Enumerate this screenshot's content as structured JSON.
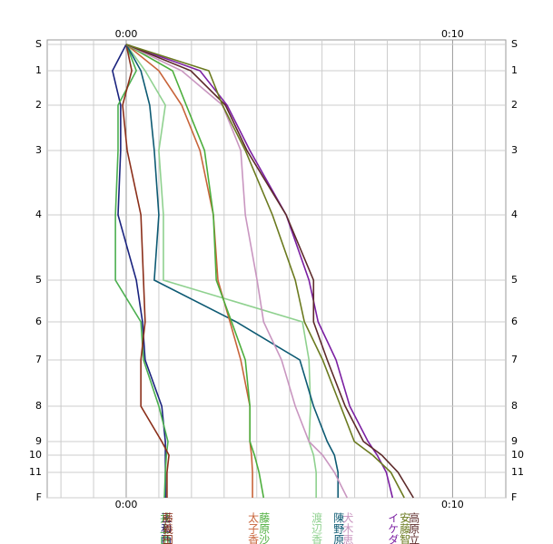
{
  "chart_data": {
    "type": "line",
    "xlim": [
      -2.42,
      11.63
    ],
    "xticks": [
      {
        "value": 0,
        "label": "0:00"
      },
      {
        "value": 10,
        "label": "0:10"
      }
    ],
    "xminor": [
      -2,
      -1,
      1,
      2,
      3,
      4,
      5,
      6,
      7,
      8,
      9,
      11
    ],
    "ylim": [
      -5,
      500
    ],
    "yticks": [
      {
        "value": 0,
        "label": "S"
      },
      29,
      67,
      117,
      188,
      260,
      306,
      348,
      399,
      438,
      453,
      472,
      {
        "value": 500,
        "label": "F"
      }
    ],
    "ytick_labels": [
      "S",
      "1",
      "2",
      "3",
      "4",
      "5",
      "6",
      "7",
      "8",
      "9",
      "10",
      "11",
      "F"
    ],
    "grid": true,
    "series": [
      {
        "name": "王和西",
        "color": "#1a237e",
        "values": [
          0,
          -0.42,
          -0.17,
          -0.17,
          -0.25,
          0.31,
          0.5,
          0.58,
          1.09,
          1.2,
          1.2,
          1.2,
          1.2
        ]
      },
      {
        "name": "井上由",
        "color": "#4caf50",
        "values": [
          0,
          0.31,
          -0.25,
          -0.25,
          -0.33,
          -0.33,
          0.45,
          0.53,
          1.0,
          1.28,
          1.23,
          1.2,
          1.17
        ]
      },
      {
        "name": "藤義田",
        "color": "#8b2f1a",
        "values": [
          0,
          0.17,
          -0.11,
          0.03,
          0.45,
          0.53,
          0.58,
          0.45,
          0.45,
          1.09,
          1.31,
          1.25,
          1.25
        ]
      },
      {
        "name": "渡辺香",
        "color": "#8fd18f",
        "values": [
          0,
          0.58,
          1.2,
          1.0,
          1.14,
          1.14,
          5.4,
          5.6,
          5.65,
          5.6,
          5.74,
          5.82,
          5.82
        ]
      },
      {
        "name": "陳野原",
        "color": "#0d5a73",
        "values": [
          0,
          0.45,
          0.72,
          0.86,
          1.0,
          0.86,
          3.37,
          5.32,
          5.74,
          6.16,
          6.38,
          6.49,
          6.49
        ]
      },
      {
        "name": "太子香",
        "color": "#c8643a",
        "values": [
          0,
          1.0,
          1.7,
          2.26,
          2.67,
          2.81,
          3.18,
          3.51,
          3.79,
          3.79,
          3.84,
          3.87,
          3.87
        ]
      },
      {
        "name": "藤原沙",
        "color": "#4cae3c",
        "values": [
          0,
          1.42,
          1.84,
          2.4,
          2.67,
          2.76,
          3.23,
          3.65,
          3.79,
          3.79,
          3.93,
          4.07,
          4.21
        ]
      },
      {
        "name": "犬木恵",
        "color": "#c996c0",
        "values": [
          0,
          1.7,
          2.95,
          3.51,
          3.65,
          4.01,
          4.21,
          4.76,
          5.18,
          5.6,
          6.02,
          6.38,
          6.77
        ]
      },
      {
        "name": "イケダ",
        "color": "#7b1fa2",
        "values": [
          0,
          2.26,
          3.09,
          3.79,
          4.9,
          5.6,
          5.88,
          6.43,
          6.85,
          7.41,
          7.69,
          7.97,
          8.16
        ]
      },
      {
        "name": "高原立",
        "color": "#5d2a2a",
        "values": [
          0,
          1.98,
          3.04,
          3.7,
          4.9,
          5.74,
          5.74,
          6.16,
          6.71,
          7.27,
          7.83,
          8.33,
          8.8
        ]
      },
      {
        "name": "安藤智",
        "color": "#6b7a1f",
        "values": [
          0,
          2.53,
          2.95,
          3.65,
          4.48,
          5.18,
          5.46,
          6.02,
          6.57,
          6.99,
          7.55,
          8.11,
          8.52
        ]
      }
    ]
  }
}
